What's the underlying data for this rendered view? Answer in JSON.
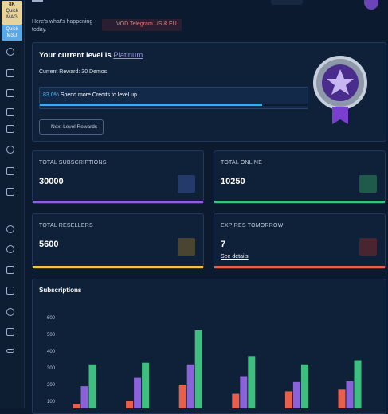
{
  "sidebar": {
    "badge": "8K",
    "links": [
      "Quick MAG",
      "Quick M3U"
    ]
  },
  "header": {
    "subtitle": "Here's what's happening today.",
    "banner": "VOD Telegram US & EU"
  },
  "level": {
    "prefix": "Your current level is",
    "name": "Platinum",
    "reward": "Current Reward: 30 Demos",
    "progress": {
      "value": 83,
      "label": "83.0%"
    },
    "progress_text": "Spend more Credits to level up.",
    "button": "Next Level Rewards"
  },
  "stats": [
    {
      "label": "TOTAL SUBSCRIPTIONS",
      "value": 30000
    },
    {
      "label": "TOTAL ONLINE",
      "value": 10250
    },
    {
      "label": "TOTAL RESELLERS",
      "value": 5600
    },
    {
      "label": "EXPIRES TOMORROW",
      "value": 7,
      "link": "See details"
    }
  ],
  "chart_data": {
    "type": "bar",
    "title": "Subscriptions",
    "categories": [
      null,
      null,
      null,
      null,
      null,
      null
    ],
    "series": [
      {
        "color": "#e8604c",
        "values": [
          85,
          100,
          200,
          145,
          160,
          170
        ]
      },
      {
        "color": "#8b62d9",
        "values": [
          190,
          240,
          320,
          250,
          215,
          220
        ]
      },
      {
        "color": "#3fbf7f",
        "values": [
          320,
          330,
          525,
          370,
          320,
          345
        ]
      }
    ],
    "ylim": [
      0,
      600
    ],
    "yticks": [
      100,
      200,
      300,
      400,
      500,
      600
    ]
  }
}
